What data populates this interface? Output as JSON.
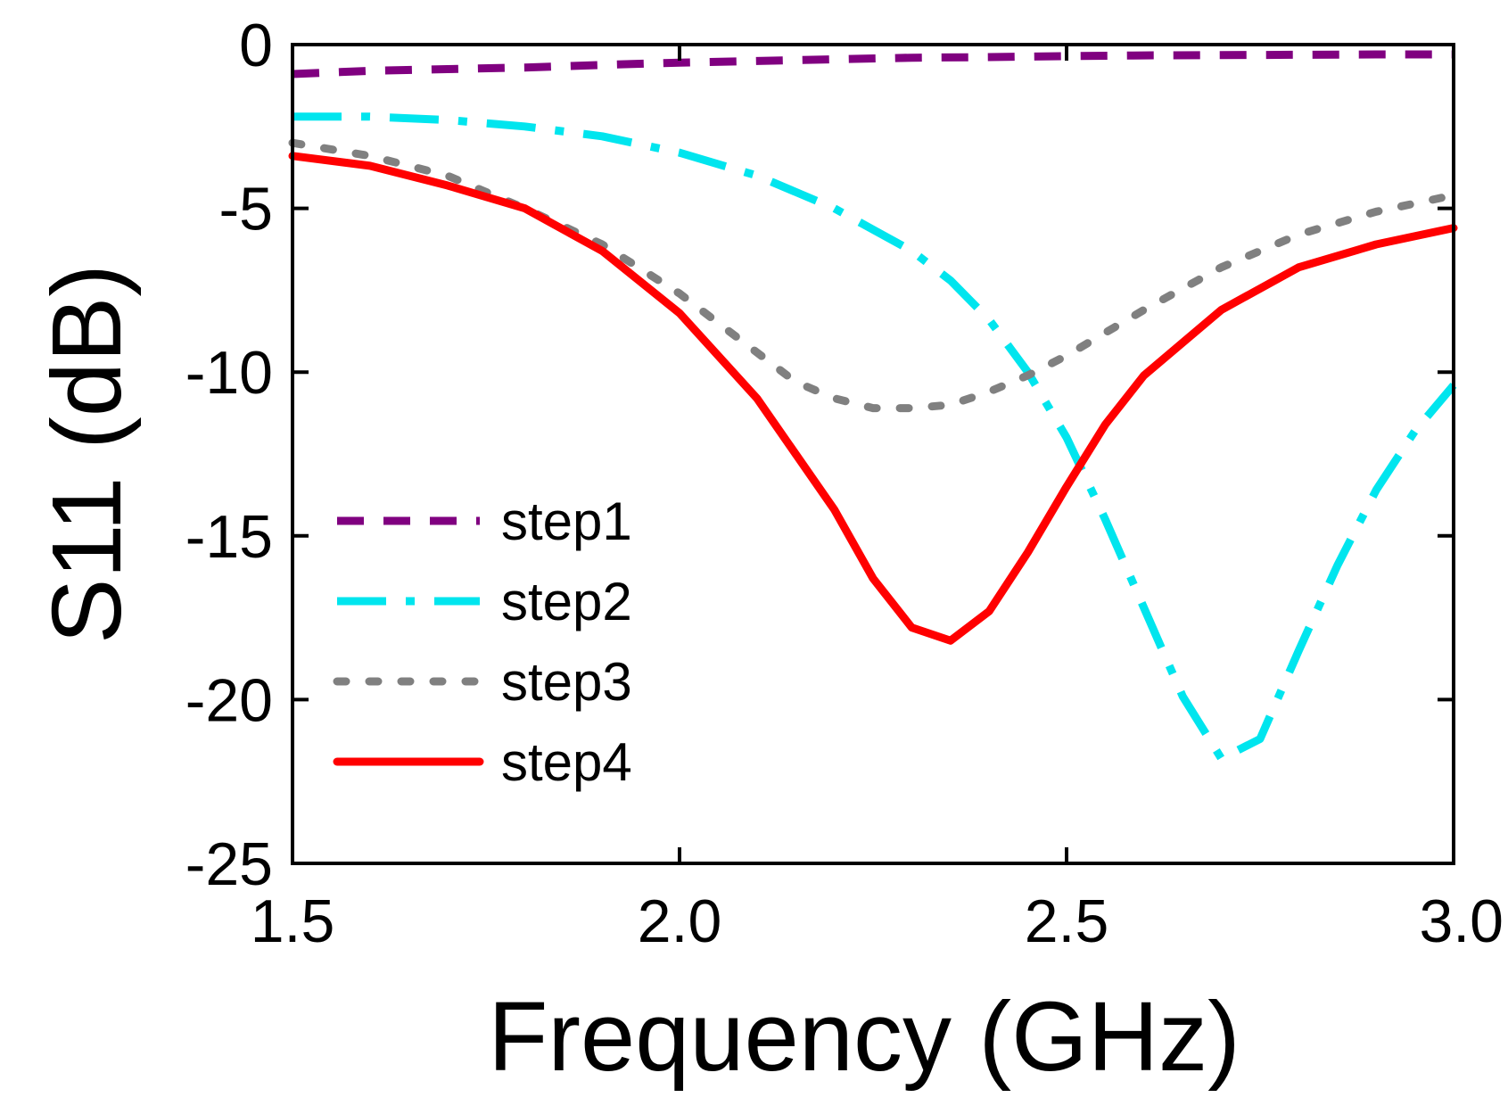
{
  "chart_data": {
    "type": "line",
    "title": "",
    "xlabel": "Frequency (GHz)",
    "ylabel": "S11 (dB)",
    "xlim": [
      1.5,
      3.0
    ],
    "ylim": [
      -25,
      0
    ],
    "xticks": [
      1.5,
      2.0,
      2.5,
      3.0
    ],
    "xtick_labels": [
      "1.5",
      "2.0",
      "2.5",
      "3.0"
    ],
    "yticks": [
      0,
      -5,
      -10,
      -15,
      -20,
      -25
    ],
    "ytick_labels": [
      "0",
      "-5",
      "-10",
      "-15",
      "-20",
      "-25"
    ],
    "grid": false,
    "legend_position": "lower-left",
    "series": [
      {
        "name": "step1",
        "color": "#800080",
        "style": "dashed",
        "x": [
          1.5,
          1.6,
          1.7,
          1.8,
          1.9,
          2.0,
          2.1,
          2.2,
          2.3,
          2.4,
          2.5,
          2.6,
          2.7,
          2.8,
          2.9,
          3.0
        ],
        "y": [
          -0.9,
          -0.8,
          -0.75,
          -0.7,
          -0.62,
          -0.55,
          -0.5,
          -0.45,
          -0.4,
          -0.38,
          -0.35,
          -0.33,
          -0.32,
          -0.31,
          -0.3,
          -0.3
        ]
      },
      {
        "name": "step2",
        "color": "#00e5ee",
        "style": "dashdot",
        "x": [
          1.5,
          1.6,
          1.7,
          1.8,
          1.9,
          2.0,
          2.1,
          2.2,
          2.3,
          2.35,
          2.4,
          2.45,
          2.5,
          2.55,
          2.6,
          2.65,
          2.7,
          2.75,
          2.8,
          2.85,
          2.9,
          2.95,
          3.0
        ],
        "y": [
          -2.2,
          -2.2,
          -2.3,
          -2.5,
          -2.8,
          -3.3,
          -4.0,
          -5.0,
          -6.3,
          -7.2,
          -8.4,
          -10.0,
          -12.0,
          -14.5,
          -17.2,
          -19.9,
          -21.8,
          -21.2,
          -18.5,
          -15.9,
          -13.6,
          -11.8,
          -10.4
        ]
      },
      {
        "name": "step3",
        "color": "#808080",
        "style": "dotted",
        "x": [
          1.5,
          1.6,
          1.7,
          1.8,
          1.9,
          2.0,
          2.1,
          2.15,
          2.2,
          2.25,
          2.3,
          2.35,
          2.4,
          2.45,
          2.5,
          2.6,
          2.7,
          2.8,
          2.9,
          3.0
        ],
        "y": [
          -3.0,
          -3.4,
          -4.0,
          -5.0,
          -6.1,
          -7.6,
          -9.4,
          -10.3,
          -10.8,
          -11.1,
          -11.1,
          -11.0,
          -10.6,
          -10.1,
          -9.5,
          -8.1,
          -6.8,
          -5.8,
          -5.1,
          -4.6
        ]
      },
      {
        "name": "step4",
        "color": "#ff0000",
        "style": "solid",
        "x": [
          1.5,
          1.6,
          1.7,
          1.8,
          1.9,
          2.0,
          2.1,
          2.2,
          2.25,
          2.3,
          2.35,
          2.4,
          2.45,
          2.5,
          2.55,
          2.6,
          2.7,
          2.8,
          2.9,
          3.0
        ],
        "y": [
          -3.4,
          -3.7,
          -4.3,
          -5.0,
          -6.3,
          -8.2,
          -10.8,
          -14.2,
          -16.3,
          -17.8,
          -18.2,
          -17.3,
          -15.5,
          -13.5,
          -11.6,
          -10.1,
          -8.1,
          -6.8,
          -6.1,
          -5.6
        ]
      }
    ]
  }
}
